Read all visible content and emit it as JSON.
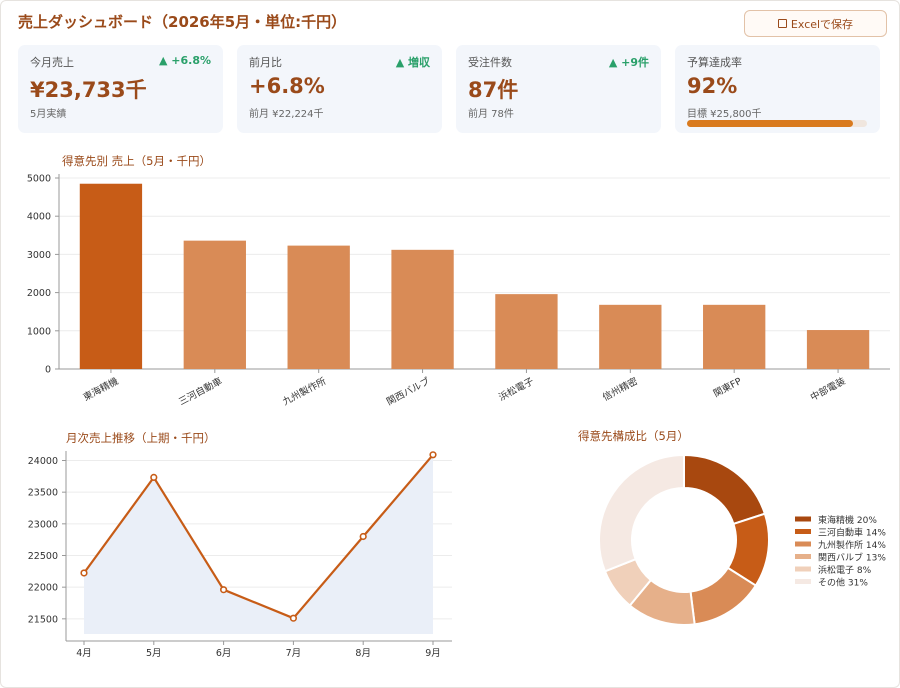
{
  "header": {
    "title": "売上ダッシュボード（2026年5月・単位:千円）",
    "save_label": "Excelで保存"
  },
  "kpis": [
    {
      "label": "今月売上",
      "delta": "▲ +6.8%",
      "value": "¥23,733千",
      "sub": "5月実績"
    },
    {
      "label": "前月比",
      "delta": "▲ 増収",
      "value": "+6.8%",
      "sub": "前月 ¥22,224千"
    },
    {
      "label": "受注件数",
      "delta": "▲ +9件",
      "value": "87件",
      "sub": "前月 78件"
    },
    {
      "label": "予算達成率",
      "delta": "",
      "value": "92%",
      "sub": "目標 ¥25,800千",
      "progress": 0.92
    }
  ],
  "colors": {
    "brand": "#9a4a1a",
    "accent": "#c75c17",
    "bar_light": "#d98b56",
    "positive": "#2aa06a"
  },
  "chart_data": [
    {
      "type": "bar",
      "title": "得意先別 売上（5月・千円）",
      "categories": [
        "東海精機",
        "三河自動車",
        "九州製作所",
        "関西バルブ",
        "浜松電子",
        "信州精密",
        "関東FP",
        "中部電装"
      ],
      "values": [
        4850,
        3360,
        3230,
        3120,
        1960,
        1680,
        1680,
        1020
      ],
      "ylim": [
        0,
        5000
      ],
      "yticks": [
        0,
        1000,
        2000,
        3000,
        4000,
        5000
      ],
      "grid": true
    },
    {
      "type": "line",
      "title": "月次売上推移（上期・千円）",
      "x": [
        "4月",
        "5月",
        "6月",
        "7月",
        "8月",
        "9月"
      ],
      "values": [
        22224,
        23733,
        21960,
        21510,
        22800,
        24090
      ],
      "ylim": [
        21150,
        24150
      ],
      "yticks": [
        21500,
        22000,
        22500,
        23000,
        23500,
        24000
      ],
      "grid": true
    },
    {
      "type": "pie",
      "title": "得意先構成比（5月）",
      "labels": [
        "東海精機 20%",
        "三河自動車 14%",
        "九州製作所 14%",
        "関西バルブ 13%",
        "浜松電子 8%",
        "その他 31%"
      ],
      "values": [
        20,
        14,
        14,
        13,
        8,
        31
      ],
      "colors": [
        "#a8480f",
        "#c75c17",
        "#d98b56",
        "#e6b08a",
        "#f0d0ba",
        "#f5e9e3"
      ],
      "legend": "right"
    }
  ]
}
